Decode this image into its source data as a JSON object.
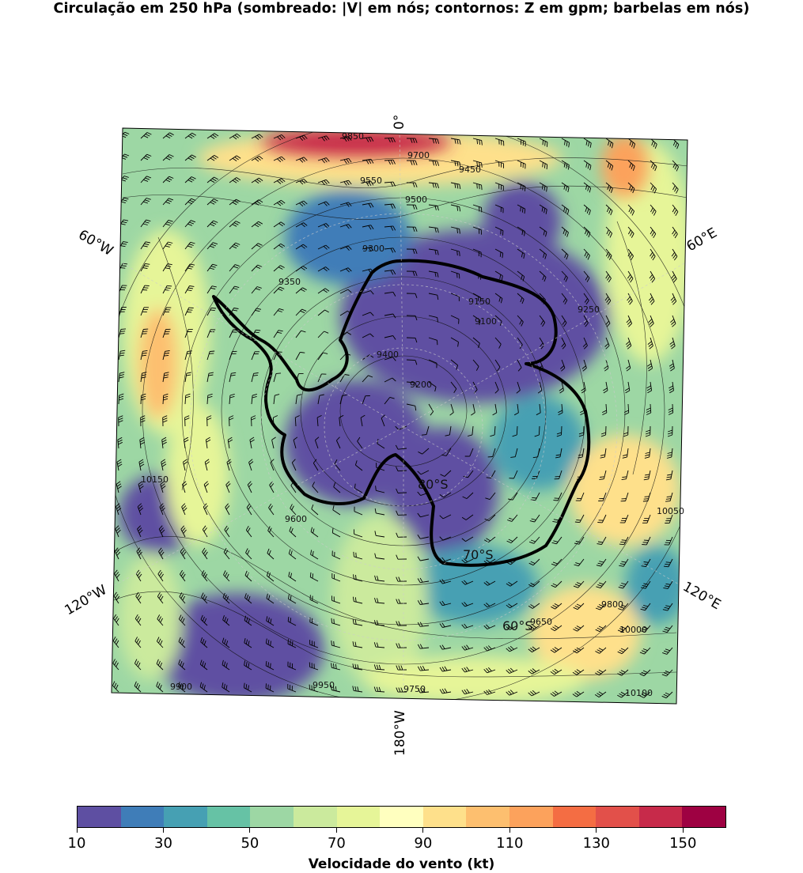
{
  "title": "Circulação em 250 hPa (sombreado: |V| em nós; contornos: Z em gpm; barbelas em nós)",
  "map": {
    "projection": "polar-stereographic-south",
    "longitude_labels": [
      "0°",
      "60°E",
      "120°E",
      "180°W",
      "120°W",
      "60°W"
    ],
    "latitude_labels": [
      "60°S",
      "70°S",
      "80°S"
    ],
    "contour_labels": [
      "9850",
      "9700",
      "9550",
      "9500",
      "9450",
      "9400",
      "9300",
      "9350",
      "9250",
      "9150",
      "9100",
      "9200",
      "9600",
      "9650",
      "9750",
      "9800",
      "9900",
      "9950",
      "10000",
      "10050",
      "10100",
      "10150"
    ],
    "coastline": "Antarctica"
  },
  "colorbar": {
    "label": "Velocidade do vento (kt)",
    "ticks": [
      "10",
      "30",
      "50",
      "70",
      "90",
      "110",
      "130",
      "150"
    ],
    "min": 10,
    "max": 160,
    "step": 10,
    "colors": [
      "#5e4fa2",
      "#3f7db8",
      "#46a0b3",
      "#66c2a5",
      "#9dd7a4",
      "#cbea9d",
      "#e6f598",
      "#ffffbf",
      "#fee08b",
      "#fdbf6f",
      "#fca25c",
      "#f46d43",
      "#e2504a",
      "#c72a4a",
      "#9e0142"
    ]
  }
}
